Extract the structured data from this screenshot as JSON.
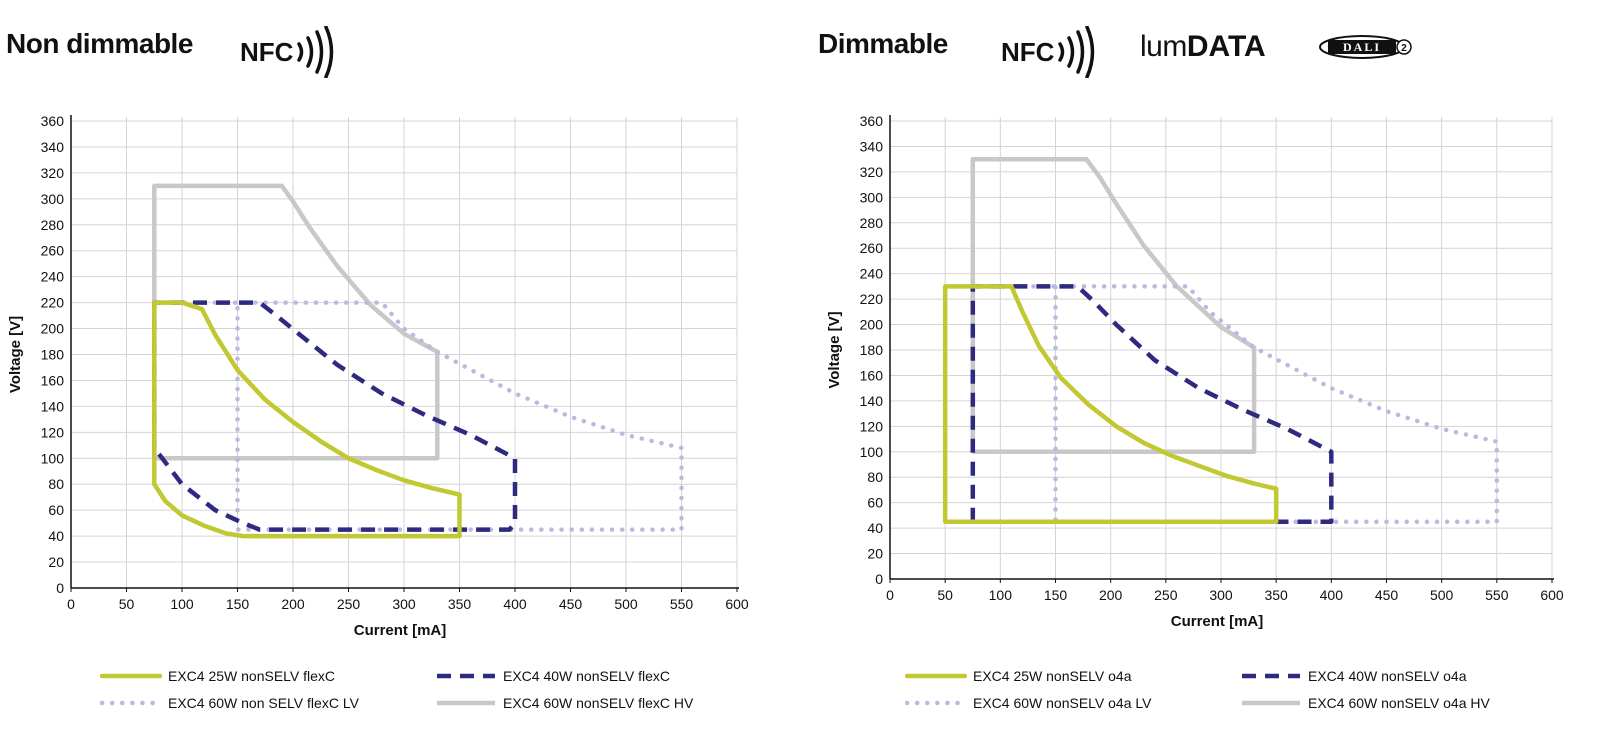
{
  "panels": [
    {
      "title": "Non dimmable",
      "badges": [
        "NFC"
      ],
      "chart_data": {
        "type": "line",
        "xlabel": "Current [mA]",
        "ylabel": "Voltage [V]",
        "xlim": [
          0,
          600
        ],
        "ylim": [
          0,
          360
        ],
        "xticks": [
          0,
          50,
          100,
          150,
          200,
          250,
          300,
          350,
          400,
          450,
          500,
          550,
          600
        ],
        "yticks": [
          0,
          20,
          40,
          60,
          80,
          100,
          120,
          140,
          160,
          180,
          200,
          220,
          240,
          260,
          280,
          300,
          320,
          340,
          360
        ],
        "grid": true,
        "series": [
          {
            "name": "EXC4 60W nonSELV flexC HV",
            "style": "solid-gray",
            "color": "#c8c8c8",
            "x": [
              75,
              75,
              190,
              200,
              215,
              240,
              270,
              300,
              330,
              330,
              75
            ],
            "y": [
              100,
              310,
              310,
              298,
              278,
              248,
              218,
              196,
              182,
              100,
              100
            ]
          },
          {
            "name": "EXC4 60W non SELV flexC LV",
            "style": "dotted",
            "color": "#bdb8e0",
            "x": [
              75,
              280,
              300,
              330,
              400,
              450,
              500,
              550,
              550,
              150,
              150
            ],
            "y": [
              220,
              220,
              200,
              182,
              150,
              132,
              118,
              108,
              45,
              45,
              220
            ]
          },
          {
            "name": "EXC4 40W nonSELV flexC",
            "style": "dashed",
            "color": "#2e2a80",
            "x": [
              75,
              75,
              170,
              185,
              205,
              240,
              280,
              320,
              360,
              400,
              400,
              395,
              170,
              155,
              130,
              100,
              75
            ],
            "y": [
              108,
              220,
              220,
              210,
              196,
              172,
              150,
              133,
              118,
              100,
              50,
              45,
              45,
              50,
              60,
              80,
              108
            ]
          },
          {
            "name": "EXC4 25W nonSELV flexC",
            "style": "solid-yellow",
            "color": "#c2c832",
            "x": [
              75,
              75,
              100,
              118,
              130,
              150,
              175,
              200,
              225,
              250,
              275,
              300,
              325,
              350,
              350,
              155,
              140,
              120,
              100,
              85,
              75
            ],
            "y": [
              80,
              220,
              220,
              215,
              195,
              168,
              145,
              128,
              113,
              100,
              91,
              83,
              77,
              72,
              40,
              40,
              42,
              48,
              56,
              67,
              80
            ]
          }
        ]
      },
      "legend": [
        {
          "label": "EXC4 25W nonSELV flexC",
          "style": "solid-yellow"
        },
        {
          "label": "EXC4 40W nonSELV flexC",
          "style": "dashed"
        },
        {
          "label": "EXC4 60W non SELV flexC LV",
          "style": "dotted"
        },
        {
          "label": "EXC4 60W nonSELV flexC HV",
          "style": "solid-gray"
        }
      ]
    },
    {
      "title": "Dimmable",
      "badges": [
        "NFC",
        "lumDATA",
        "DALI 2"
      ],
      "chart_data": {
        "type": "line",
        "xlabel": "Current [mA]",
        "ylabel": "Voltage [V]",
        "xlim": [
          0,
          600
        ],
        "ylim": [
          0,
          360
        ],
        "xticks": [
          0,
          50,
          100,
          150,
          200,
          250,
          300,
          350,
          400,
          450,
          500,
          550,
          600
        ],
        "yticks": [
          0,
          20,
          40,
          60,
          80,
          100,
          120,
          140,
          160,
          180,
          200,
          220,
          240,
          260,
          280,
          300,
          320,
          340,
          360
        ],
        "grid": true,
        "series": [
          {
            "name": "EXC4 60W nonSELV o4a HV",
            "style": "solid-gray",
            "color": "#c8c8c8",
            "x": [
              75,
              75,
              178,
              190,
              205,
              230,
              260,
              300,
              330,
              330,
              75
            ],
            "y": [
              100,
              330,
              330,
              316,
              295,
              262,
              230,
              198,
              182,
              100,
              100
            ]
          },
          {
            "name": "EXC4 60W nonSELV o4a LV",
            "style": "dotted",
            "color": "#bdb8e0",
            "x": [
              75,
              270,
              290,
              330,
              400,
              450,
              500,
              550,
              550,
              150,
              150
            ],
            "y": [
              230,
              230,
              210,
              182,
              150,
              132,
              118,
              108,
              45,
              45,
              230
            ]
          },
          {
            "name": "EXC4 40W nonSELV o4a",
            "style": "dashed",
            "color": "#2e2a80",
            "x": [
              75,
              75,
              170,
              185,
              205,
              240,
              280,
              320,
              360,
              400,
              400,
              75
            ],
            "y": [
              45,
              230,
              230,
              218,
              200,
              172,
              150,
              133,
              118,
              100,
              45,
              45
            ]
          },
          {
            "name": "EXC4 25W nonSELV o4a",
            "style": "solid-yellow",
            "color": "#c2c832",
            "x": [
              50,
              50,
              110,
              120,
              135,
              155,
              180,
              205,
              230,
              255,
              280,
              305,
              330,
              350,
              350,
              50
            ],
            "y": [
              45,
              230,
              230,
              210,
              183,
              158,
              137,
              120,
              107,
              97,
              89,
              81,
              75,
              71,
              45,
              45
            ]
          }
        ]
      },
      "legend": [
        {
          "label": "EXC4 25W nonSELV o4a",
          "style": "solid-yellow"
        },
        {
          "label": "EXC4 40W nonSELV o4a",
          "style": "dashed"
        },
        {
          "label": "EXC4 60W nonSELV o4a LV",
          "style": "dotted"
        },
        {
          "label": "EXC4 60W nonSELV o4a HV",
          "style": "solid-gray"
        }
      ]
    }
  ]
}
